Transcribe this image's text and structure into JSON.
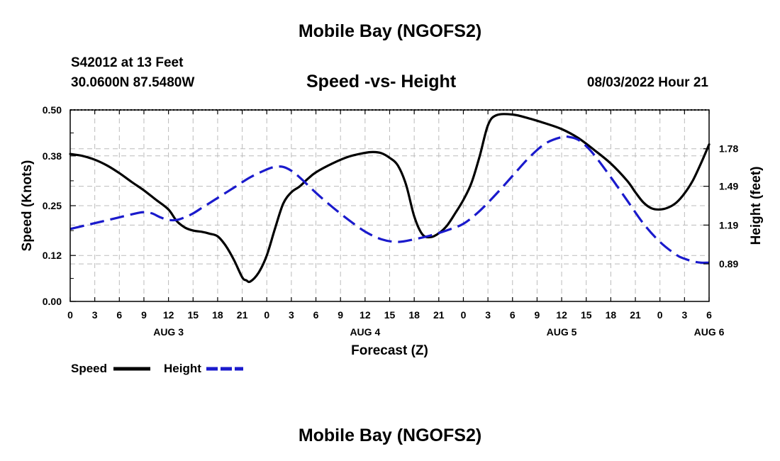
{
  "header": {
    "title_top": "Mobile Bay (NGOFS2)",
    "station": "S42012 at 13 Feet",
    "coords": "30.0600N  87.5480W",
    "chart_title": "Speed -vs- Height",
    "date_hour": "08/03/2022 Hour 21",
    "title_bottom": "Mobile Bay (NGOFS2)"
  },
  "colors": {
    "speed": "#000000",
    "height": "#1a1acc",
    "grid": "#bbbbbb"
  },
  "chart_data": {
    "type": "line",
    "title": "Speed -vs- Height",
    "xlabel": "Forecast (Z)",
    "ylabel": "Speed (Knots)",
    "y2label": "Height (feet)",
    "x_hours_range": [
      0,
      78
    ],
    "x_tick_labels": [
      "0",
      "3",
      "6",
      "9",
      "12",
      "15",
      "18",
      "21",
      "0",
      "3",
      "6",
      "9",
      "12",
      "15",
      "18",
      "21",
      "0",
      "3",
      "6",
      "9",
      "12",
      "15",
      "18",
      "21",
      "0",
      "3",
      "6"
    ],
    "date_labels": [
      {
        "hour": 12,
        "label": "AUG 3"
      },
      {
        "hour": 36,
        "label": "AUG 4"
      },
      {
        "hour": 60,
        "label": "AUG 5"
      },
      {
        "hour": 78,
        "label": "AUG 6"
      }
    ],
    "ylim": [
      0,
      0.5
    ],
    "y_ticks": [
      0.0,
      0.12,
      0.25,
      0.38,
      0.5
    ],
    "y_tick_labels": [
      "0.00",
      "0.12",
      "0.25",
      "0.38",
      "0.50"
    ],
    "y2lim": [
      0.6,
      2.08
    ],
    "y2_ticks": [
      0.89,
      1.19,
      1.49,
      1.78
    ],
    "y2_tick_labels": [
      "0.89",
      "1.19",
      "1.49",
      "1.78"
    ],
    "grid": true,
    "legend_position": "bottom-left",
    "series": [
      {
        "name": "Speed",
        "axis": "left",
        "style": "solid",
        "x": [
          0,
          1.5,
          3,
          4.5,
          6,
          7.5,
          9,
          10.5,
          12,
          13,
          14,
          15,
          16,
          17,
          18,
          19,
          20,
          21,
          21.5,
          22,
          23,
          24,
          25,
          26,
          27,
          28,
          29,
          30,
          32,
          34,
          36,
          37,
          38,
          39,
          40,
          41,
          42,
          43,
          44,
          45,
          46,
          47,
          48,
          49,
          50,
          51,
          52,
          54,
          56,
          58,
          60,
          62,
          64,
          66,
          68,
          69,
          70,
          71,
          72,
          73,
          74,
          75,
          76,
          77,
          78
        ],
        "values": [
          0.385,
          0.38,
          0.37,
          0.355,
          0.335,
          0.312,
          0.29,
          0.265,
          0.24,
          0.21,
          0.193,
          0.185,
          0.182,
          0.177,
          0.17,
          0.145,
          0.108,
          0.063,
          0.055,
          0.052,
          0.075,
          0.12,
          0.19,
          0.255,
          0.285,
          0.3,
          0.32,
          0.337,
          0.36,
          0.378,
          0.388,
          0.39,
          0.387,
          0.375,
          0.355,
          0.305,
          0.222,
          0.175,
          0.168,
          0.178,
          0.198,
          0.23,
          0.265,
          0.31,
          0.38,
          0.46,
          0.486,
          0.488,
          0.478,
          0.465,
          0.45,
          0.427,
          0.395,
          0.36,
          0.315,
          0.285,
          0.258,
          0.243,
          0.24,
          0.245,
          0.258,
          0.282,
          0.315,
          0.36,
          0.41
        ]
      },
      {
        "name": "Height",
        "axis": "right",
        "style": "dashed",
        "x": [
          0,
          2,
          4,
          6,
          8,
          9,
          10,
          11,
          12,
          13,
          14,
          15,
          16,
          17,
          18,
          20,
          22,
          24,
          25,
          26,
          27,
          28,
          30,
          32,
          34,
          36,
          38,
          40,
          42,
          44,
          46,
          48,
          50,
          52,
          54,
          56,
          58,
          60,
          61,
          62,
          63,
          64,
          66,
          68,
          70,
          72,
          74,
          75,
          76,
          77,
          78
        ],
        "values": [
          1.16,
          1.19,
          1.22,
          1.25,
          1.28,
          1.29,
          1.28,
          1.25,
          1.23,
          1.23,
          1.25,
          1.28,
          1.32,
          1.36,
          1.4,
          1.48,
          1.56,
          1.62,
          1.64,
          1.64,
          1.61,
          1.56,
          1.44,
          1.33,
          1.23,
          1.14,
          1.08,
          1.06,
          1.08,
          1.11,
          1.15,
          1.2,
          1.3,
          1.43,
          1.57,
          1.71,
          1.82,
          1.87,
          1.87,
          1.85,
          1.8,
          1.73,
          1.56,
          1.38,
          1.2,
          1.06,
          0.96,
          0.93,
          0.91,
          0.9,
          0.9
        ]
      }
    ]
  }
}
